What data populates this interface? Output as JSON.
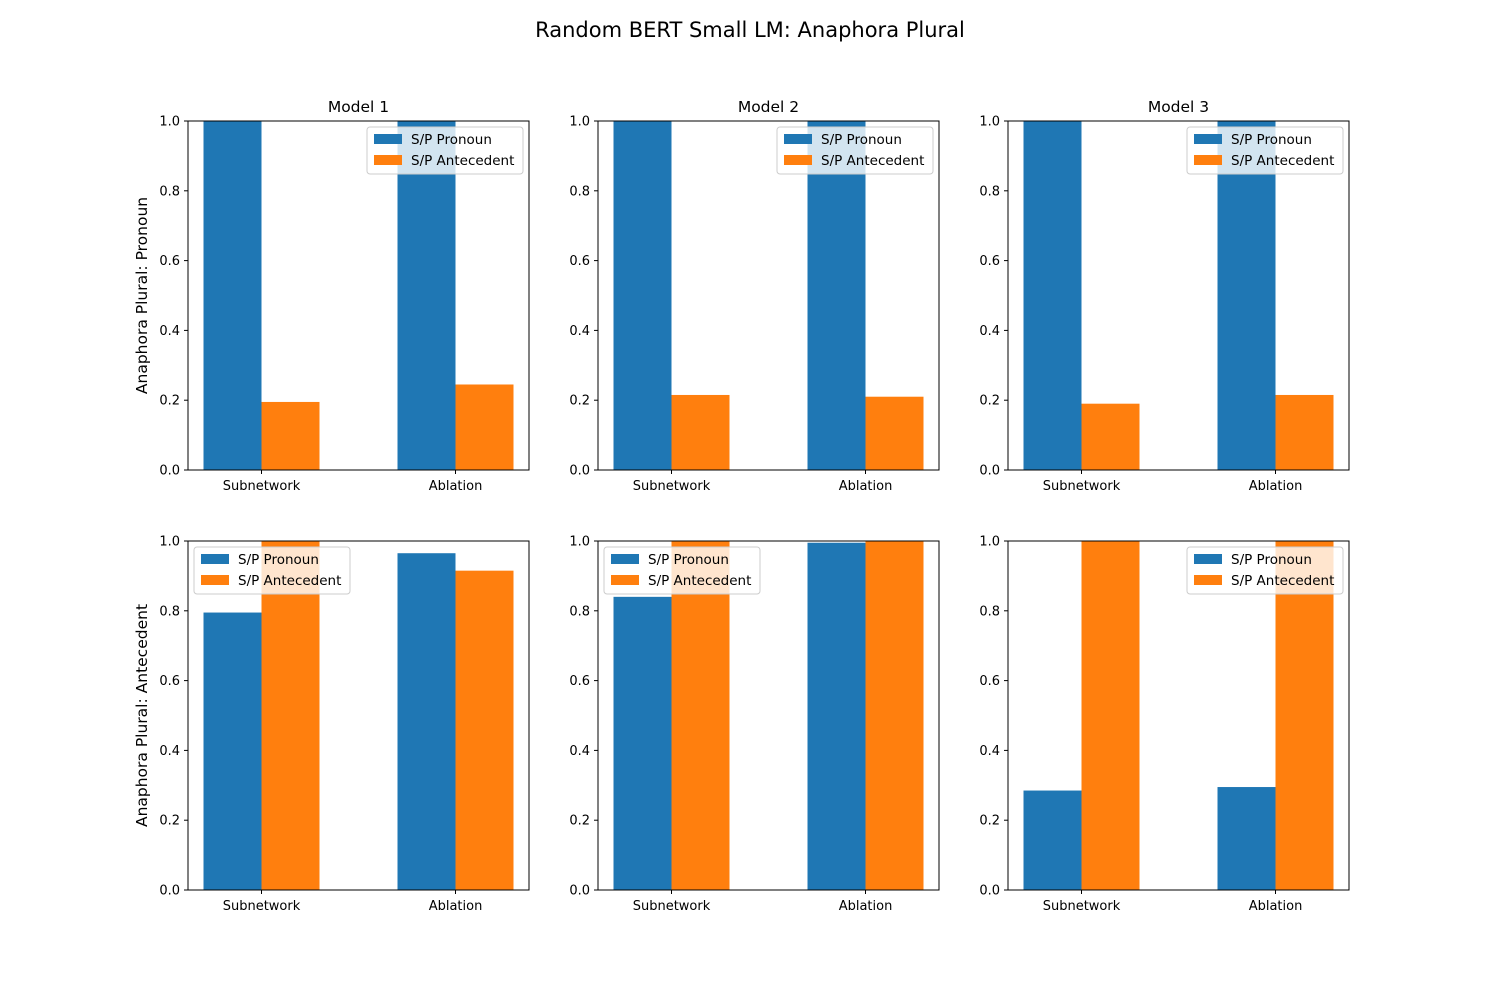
{
  "figure": {
    "title": "Random BERT Small LM: Anaphora Plural"
  },
  "colors": {
    "pronoun": "#1f77b4",
    "antecedent": "#ff7f0e"
  },
  "chart_data": [
    {
      "type": "bar",
      "row": 0,
      "col": 0,
      "title": "Model 1",
      "ylabel": "Anaphora Plural: Pronoun",
      "categories": [
        "Subnetwork",
        "Ablation"
      ],
      "series": [
        {
          "name": "S/P Pronoun",
          "values": [
            1.0,
            1.0
          ]
        },
        {
          "name": "S/P Antecedent",
          "values": [
            0.195,
            0.245
          ]
        }
      ],
      "ylim": [
        0,
        1.0
      ],
      "yticks": [
        "0.0",
        "0.2",
        "0.4",
        "0.6",
        "0.8",
        "1.0"
      ],
      "legend": "upper right",
      "grid": false
    },
    {
      "type": "bar",
      "row": 0,
      "col": 1,
      "title": "Model 2",
      "ylabel": "",
      "categories": [
        "Subnetwork",
        "Ablation"
      ],
      "series": [
        {
          "name": "S/P Pronoun",
          "values": [
            1.0,
            1.0
          ]
        },
        {
          "name": "S/P Antecedent",
          "values": [
            0.215,
            0.21
          ]
        }
      ],
      "ylim": [
        0,
        1.0
      ],
      "yticks": [
        "0.0",
        "0.2",
        "0.4",
        "0.6",
        "0.8",
        "1.0"
      ],
      "legend": "upper right",
      "grid": false
    },
    {
      "type": "bar",
      "row": 0,
      "col": 2,
      "title": "Model 3",
      "ylabel": "",
      "categories": [
        "Subnetwork",
        "Ablation"
      ],
      "series": [
        {
          "name": "S/P Pronoun",
          "values": [
            1.0,
            1.0
          ]
        },
        {
          "name": "S/P Antecedent",
          "values": [
            0.19,
            0.215
          ]
        }
      ],
      "ylim": [
        0,
        1.0
      ],
      "yticks": [
        "0.0",
        "0.2",
        "0.4",
        "0.6",
        "0.8",
        "1.0"
      ],
      "legend": "upper right",
      "grid": false
    },
    {
      "type": "bar",
      "row": 1,
      "col": 0,
      "title": "",
      "ylabel": "Anaphora Plural: Antecedent",
      "categories": [
        "Subnetwork",
        "Ablation"
      ],
      "series": [
        {
          "name": "S/P Pronoun",
          "values": [
            0.795,
            0.965
          ]
        },
        {
          "name": "S/P Antecedent",
          "values": [
            1.0,
            0.915
          ]
        }
      ],
      "ylim": [
        0,
        1.0
      ],
      "yticks": [
        "0.0",
        "0.2",
        "0.4",
        "0.6",
        "0.8",
        "1.0"
      ],
      "legend": "upper left",
      "grid": false
    },
    {
      "type": "bar",
      "row": 1,
      "col": 1,
      "title": "",
      "ylabel": "",
      "categories": [
        "Subnetwork",
        "Ablation"
      ],
      "series": [
        {
          "name": "S/P Pronoun",
          "values": [
            0.84,
            0.995
          ]
        },
        {
          "name": "S/P Antecedent",
          "values": [
            1.0,
            1.0
          ]
        }
      ],
      "ylim": [
        0,
        1.0
      ],
      "yticks": [
        "0.0",
        "0.2",
        "0.4",
        "0.6",
        "0.8",
        "1.0"
      ],
      "legend": "upper left",
      "grid": false
    },
    {
      "type": "bar",
      "row": 1,
      "col": 2,
      "title": "",
      "ylabel": "",
      "categories": [
        "Subnetwork",
        "Ablation"
      ],
      "series": [
        {
          "name": "S/P Pronoun",
          "values": [
            0.285,
            0.295
          ]
        },
        {
          "name": "S/P Antecedent",
          "values": [
            1.0,
            1.0
          ]
        }
      ],
      "ylim": [
        0,
        1.0
      ],
      "yticks": [
        "0.0",
        "0.2",
        "0.4",
        "0.6",
        "0.8",
        "1.0"
      ],
      "legend": "upper right",
      "grid": false
    }
  ]
}
